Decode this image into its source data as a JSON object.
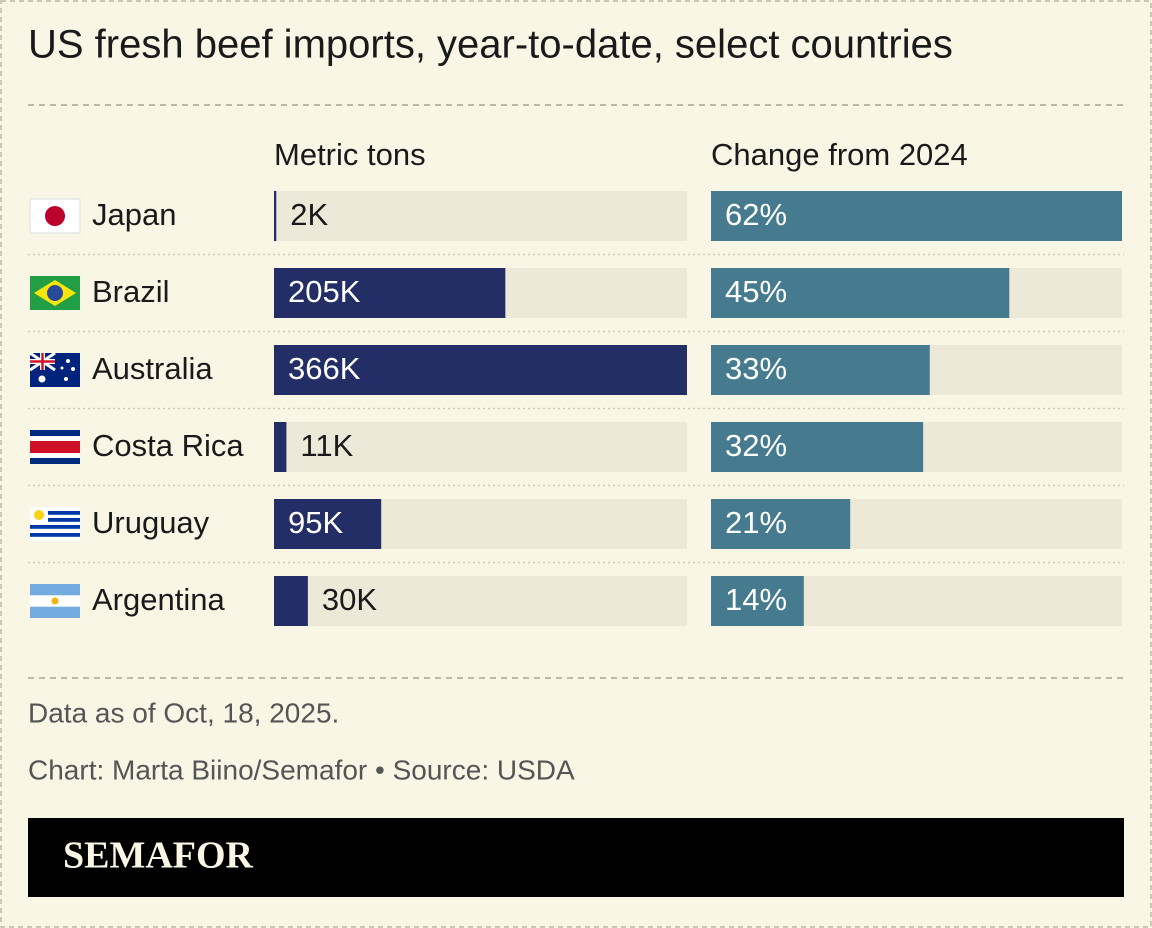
{
  "chart_data": {
    "type": "bar",
    "title": "US fresh beef imports, year-to-date, select countries",
    "categories": [
      "Japan",
      "Brazil",
      "Australia",
      "Costa Rica",
      "Uruguay",
      "Argentina"
    ],
    "series": [
      {
        "name": "Metric tons",
        "color": "#232d66",
        "values": [
          2000,
          205000,
          366000,
          11000,
          95000,
          30000
        ],
        "value_labels": [
          "2K",
          "205K",
          "366K",
          "11K",
          "95K",
          "30K"
        ],
        "xlim": [
          0,
          366000
        ]
      },
      {
        "name": "Change from 2024",
        "color": "#467a8f",
        "values": [
          62,
          45,
          33,
          32,
          21,
          14
        ],
        "value_labels": [
          "62%",
          "45%",
          "33%",
          "32%",
          "21%",
          "14%"
        ],
        "xlim": [
          0,
          62
        ]
      }
    ],
    "note": "Data as of Oct, 18, 2025.",
    "credit": "Chart: Marta Biino/Semafor • Source: USDA",
    "brand": "SEMAFOR"
  }
}
